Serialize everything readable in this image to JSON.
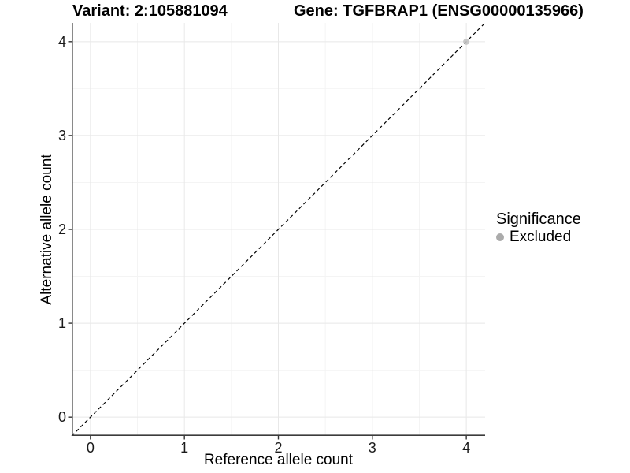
{
  "chart_data": {
    "type": "scatter",
    "title_left": "Variant: 2:105881094",
    "title_right": "Gene: TGFBRAP1 (ENSG00000135966)",
    "xlabel": "Reference allele count",
    "ylabel": "Alternative allele count",
    "xlim": [
      -0.2,
      4.2
    ],
    "ylim": [
      -0.2,
      4.2
    ],
    "x_ticks": [
      0,
      1,
      2,
      3,
      4
    ],
    "y_ticks": [
      0,
      1,
      2,
      3,
      4
    ],
    "x_minor_ticks": [
      0.5,
      1.5,
      2.5,
      3.5
    ],
    "y_minor_ticks": [
      0.5,
      1.5,
      2.5,
      3.5
    ],
    "grid": "major and minor gridlines on white background",
    "points": [
      {
        "x": 4,
        "y": 4,
        "significance": "Excluded"
      }
    ],
    "reference_line": {
      "type": "identity y=x",
      "style": "dashed",
      "x1": -0.2,
      "y1": -0.2,
      "x2": 4.2,
      "y2": 4.2
    },
    "legend": {
      "title": "Significance",
      "position": "right",
      "items": [
        {
          "label": "Excluded",
          "marker": "circle",
          "color": "#ababab"
        }
      ]
    },
    "colors": {
      "background": "#ffffff",
      "grid_major": "#e8e8e8",
      "grid_minor": "#f4f4f4",
      "axis_line": "#3c3c3c",
      "tick_mark": "#333333",
      "dashed_line": "#000000",
      "point_excluded": "#c2c2c2",
      "legend_dot": "#ababab",
      "text": "#000000"
    }
  }
}
